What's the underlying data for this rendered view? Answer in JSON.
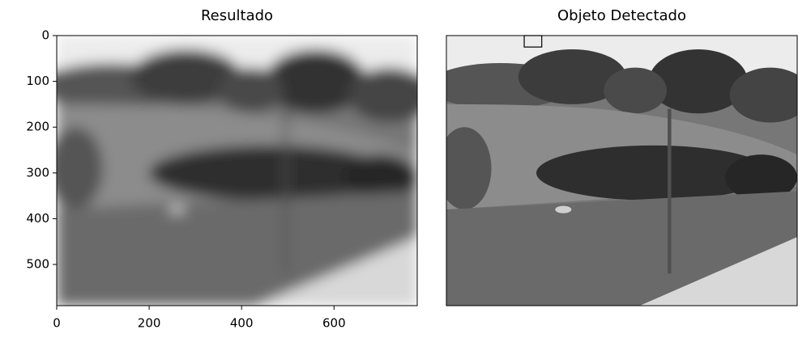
{
  "chart_data": [
    {
      "type": "image",
      "title": "Resultado",
      "xlim": [
        0,
        780
      ],
      "ylim": [
        590,
        0
      ],
      "xticks": [
        0,
        200,
        400,
        600
      ],
      "yticks": [
        0,
        100,
        200,
        300,
        400,
        500
      ],
      "blurred": true,
      "axis": true
    },
    {
      "type": "image",
      "title": "Objeto Detectado",
      "xlim": [
        0,
        780
      ],
      "ylim": [
        590,
        0
      ],
      "blurred": false,
      "axis": false,
      "boxes": [
        {
          "x": [
            173,
            212
          ],
          "y": [
            0,
            25
          ]
        }
      ]
    }
  ]
}
